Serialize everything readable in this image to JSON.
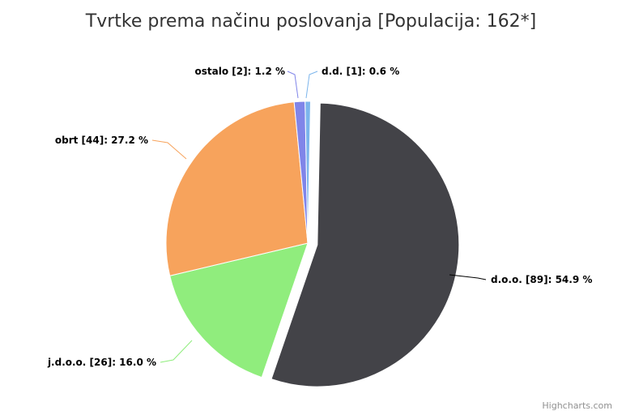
{
  "chart_data": {
    "type": "pie",
    "title": "Tvrtke prema načinu poslovanja [Populacija: 162*]",
    "slices": [
      {
        "name": "d.o.o.",
        "count": 89,
        "percent": 54.9,
        "color": "#434348",
        "sliced": true
      },
      {
        "name": "j.d.o.o.",
        "count": 26,
        "percent": 16.0,
        "color": "#90ed7d",
        "sliced": false
      },
      {
        "name": "obrt",
        "count": 44,
        "percent": 27.2,
        "color": "#f7a35c",
        "sliced": false
      },
      {
        "name": "ostalo",
        "count": 2,
        "percent": 1.2,
        "color": "#8085e9",
        "sliced": false
      },
      {
        "name": "d.d.",
        "count": 1,
        "percent": 0.6,
        "color": "#7cb5ec",
        "sliced": false
      }
    ],
    "labels": [
      "d.o.o. [89]: 54.9 %",
      "j.d.o.o. [26]: 16.0 %",
      "obrt [44]: 27.2 %",
      "ostalo [2]: 1.2 %",
      "d.d. [1]: 0.6 %"
    ],
    "credits": "Highcharts.com"
  }
}
